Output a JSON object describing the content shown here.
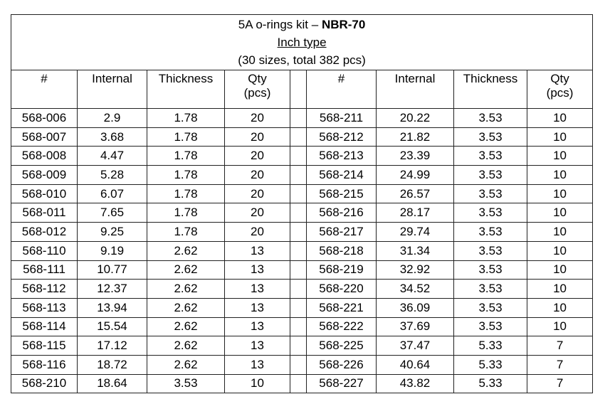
{
  "title": {
    "prefix": "5A o-rings kit – ",
    "bold": "NBR-70",
    "subtitle": "Inch type",
    "note": "(30 sizes, total 382 pcs)"
  },
  "table": {
    "headers": [
      "#",
      "Internal",
      "Thickness",
      "Qty (pcs)",
      "#",
      "Internal",
      "Thickness",
      "Qty (pcs)"
    ],
    "rows": [
      [
        "568-006",
        "2.9",
        "1.78",
        "20",
        "568-211",
        "20.22",
        "3.53",
        "10"
      ],
      [
        "568-007",
        "3.68",
        "1.78",
        "20",
        "568-212",
        "21.82",
        "3.53",
        "10"
      ],
      [
        "568-008",
        "4.47",
        "1.78",
        "20",
        "568-213",
        "23.39",
        "3.53",
        "10"
      ],
      [
        "568-009",
        "5.28",
        "1.78",
        "20",
        "568-214",
        "24.99",
        "3.53",
        "10"
      ],
      [
        "568-010",
        "6.07",
        "1.78",
        "20",
        "568-215",
        "26.57",
        "3.53",
        "10"
      ],
      [
        "568-011",
        "7.65",
        "1.78",
        "20",
        "568-216",
        "28.17",
        "3.53",
        "10"
      ],
      [
        "568-012",
        "9.25",
        "1.78",
        "20",
        "568-217",
        "29.74",
        "3.53",
        "10"
      ],
      [
        "568-110",
        "9.19",
        "2.62",
        "13",
        "568-218",
        "31.34",
        "3.53",
        "10"
      ],
      [
        "568-111",
        "10.77",
        "2.62",
        "13",
        "568-219",
        "32.92",
        "3.53",
        "10"
      ],
      [
        "568-112",
        "12.37",
        "2.62",
        "13",
        "568-220",
        "34.52",
        "3.53",
        "10"
      ],
      [
        "568-113",
        "13.94",
        "2.62",
        "13",
        "568-221",
        "36.09",
        "3.53",
        "10"
      ],
      [
        "568-114",
        "15.54",
        "2.62",
        "13",
        "568-222",
        "37.69",
        "3.53",
        "10"
      ],
      [
        "568-115",
        "17.12",
        "2.62",
        "13",
        "568-225",
        "37.47",
        "5.33",
        "7"
      ],
      [
        "568-116",
        "18.72",
        "2.62",
        "13",
        "568-226",
        "40.64",
        "5.33",
        "7"
      ],
      [
        "568-210",
        "18.64",
        "3.53",
        "10",
        "568-227",
        "43.82",
        "5.33",
        "7"
      ]
    ]
  }
}
